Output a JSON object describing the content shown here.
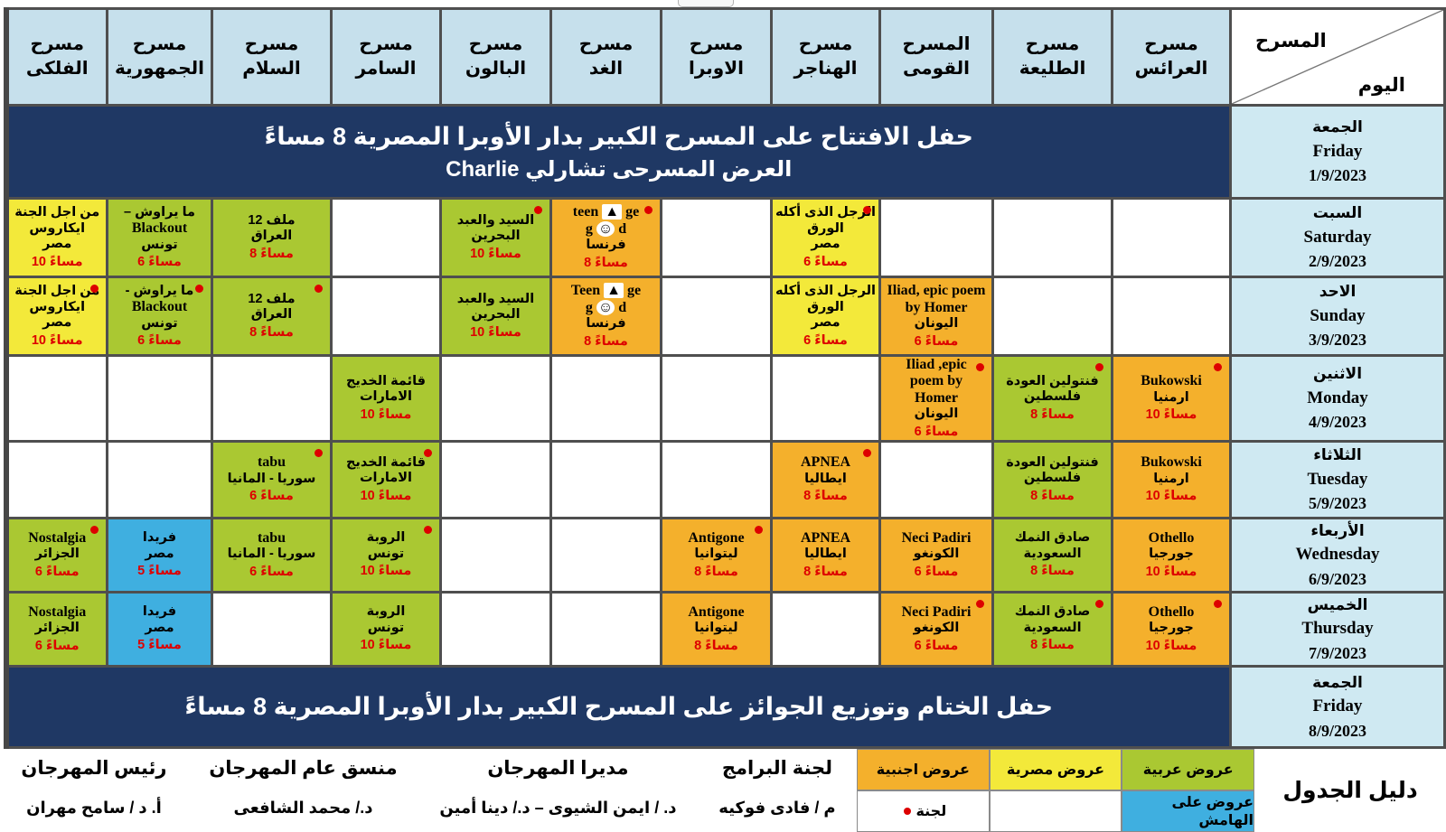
{
  "corner": {
    "top": "المسرح",
    "bottom": "اليوم"
  },
  "theaters": [
    "مسرح\nالعرائس",
    "مسرح\nالطليعة",
    "المسرح\nالقومى",
    "مسرح\nالهناجر",
    "مسرح\nالاوبرا",
    "مسرح\nالغد",
    "مسرح\nالبالون",
    "مسرح\nالسامر",
    "مسرح\nالسلام",
    "مسرح\nالجمهورية",
    "مسرح\nالفلكى"
  ],
  "pm": "مساءً",
  "days": [
    {
      "ar": "الجمعة",
      "en": "Friday",
      "date": "1/9/2023"
    },
    {
      "ar": "السبت",
      "en": "Saturday",
      "date": "2/9/2023"
    },
    {
      "ar": "الاحد",
      "en": "Sunday",
      "date": "3/9/2023"
    },
    {
      "ar": "الاثنين",
      "en": "Monday",
      "date": "4/9/2023"
    },
    {
      "ar": "الثلاثاء",
      "en": "Tuesday",
      "date": "5/9/2023"
    },
    {
      "ar": "الأربعاء",
      "en": "Wednesday",
      "date": "6/9/2023"
    },
    {
      "ar": "الخميس",
      "en": "Thursday",
      "date": "7/9/2023"
    },
    {
      "ar": "الجمعة",
      "en": "Friday",
      "date": "8/9/2023"
    }
  ],
  "ceremonies": {
    "opening_line1": "حفل الافتتاح على المسرح الكبير بدار الأوبرا المصرية  8 مساءً",
    "opening_line2": "العرض المسرحى  تشارلي  Charlie",
    "closing": "حفل الختام وتوزيع الجوائز على المسرح الكبير بدار الأوبرا المصرية  8 مساءً"
  },
  "schedule": [
    {
      "day": 1,
      "cells": [
        null,
        null,
        null,
        {
          "c": "yellow",
          "b": true,
          "lines": [
            "الرجل الذى أكله",
            "الورق",
            "مصر"
          ],
          "time": "6"
        },
        null,
        {
          "c": "orange",
          "b": true,
          "lines": [
            "teen ▲ ge",
            "g ☺ d",
            "فرنسا"
          ],
          "time": "8"
        },
        {
          "c": "green",
          "b": true,
          "lines": [
            "السيد والعبد",
            "البحرين"
          ],
          "time": "10"
        },
        null,
        {
          "c": "green",
          "b": false,
          "lines": [
            "ملف 12",
            "العراق"
          ],
          "time": "8"
        },
        {
          "c": "green",
          "b": false,
          "lines": [
            "ما يراوش –",
            "Blackout",
            "تونس"
          ],
          "time": "6"
        },
        {
          "c": "yellow",
          "b": false,
          "lines": [
            "من اجل الجنة",
            "ايكاروس",
            "مصر"
          ],
          "time": "10"
        }
      ]
    },
    {
      "day": 2,
      "cells": [
        null,
        null,
        {
          "c": "orange",
          "b": false,
          "lines": [
            "Iliad, epic poem",
            "by Homer",
            "اليونان"
          ],
          "time": "6"
        },
        {
          "c": "yellow",
          "b": false,
          "lines": [
            "الرجل الذى أكله",
            "الورق",
            "مصر"
          ],
          "time": "6"
        },
        null,
        {
          "c": "orange",
          "b": false,
          "lines": [
            "Teen ▲ ge",
            "g ☺ d",
            "فرنسا"
          ],
          "time": "8"
        },
        {
          "c": "green",
          "b": false,
          "lines": [
            "السيد والعبد",
            "البحرين"
          ],
          "time": "10"
        },
        null,
        {
          "c": "green",
          "b": true,
          "lines": [
            "ملف 12",
            "العراق"
          ],
          "time": "8"
        },
        {
          "c": "green",
          "b": true,
          "lines": [
            "ما يراوش -",
            "Blackout",
            "تونس"
          ],
          "time": "6"
        },
        {
          "c": "yellow",
          "b": true,
          "lines": [
            "من اجل الجنة",
            "ايكاروس",
            "مصر"
          ],
          "time": "10"
        }
      ]
    },
    {
      "day": 3,
      "cells": [
        {
          "c": "orange",
          "b": true,
          "lines": [
            "Bukowski",
            "ارمنيا"
          ],
          "time": "10"
        },
        {
          "c": "green",
          "b": true,
          "lines": [
            "فنتولين العودة",
            "فلسطين"
          ],
          "time": "8"
        },
        {
          "c": "orange",
          "b": true,
          "lines": [
            "Iliad ,epic",
            "poem by",
            "Homer",
            "اليونان"
          ],
          "time": "6"
        },
        null,
        null,
        null,
        null,
        {
          "c": "green",
          "b": false,
          "lines": [
            "قائمة الخديج",
            "الامارات"
          ],
          "time": "10"
        },
        null,
        null,
        null
      ]
    },
    {
      "day": 4,
      "cells": [
        {
          "c": "orange",
          "b": false,
          "lines": [
            "Bukowski",
            "ارمنيا"
          ],
          "time": "10"
        },
        {
          "c": "green",
          "b": false,
          "lines": [
            "فنتولين العودة",
            "فلسطين"
          ],
          "time": "8"
        },
        null,
        {
          "c": "orange",
          "b": true,
          "lines": [
            "APNEA",
            "ايطاليا"
          ],
          "time": "8"
        },
        null,
        null,
        null,
        {
          "c": "green",
          "b": true,
          "lines": [
            "قائمة الخديج",
            "الامارات"
          ],
          "time": "10"
        },
        {
          "c": "green",
          "b": true,
          "lines": [
            "tabu",
            "سوريا - المانيا"
          ],
          "time": "6"
        },
        null,
        null
      ]
    },
    {
      "day": 5,
      "cells": [
        {
          "c": "orange",
          "b": false,
          "lines": [
            "Othello",
            "جورجيا"
          ],
          "time": "10"
        },
        {
          "c": "green",
          "b": false,
          "lines": [
            "صادق النمك",
            "السعودية"
          ],
          "time": "8"
        },
        {
          "c": "orange",
          "b": false,
          "lines": [
            "Neci Padiri",
            "الكونغو"
          ],
          "time": "6"
        },
        {
          "c": "orange",
          "b": false,
          "lines": [
            "APNEA",
            "ايطاليا"
          ],
          "time": "8"
        },
        {
          "c": "orange",
          "b": true,
          "lines": [
            "Antigone",
            "ليتوانيا"
          ],
          "time": "8"
        },
        null,
        null,
        {
          "c": "green",
          "b": true,
          "lines": [
            "الروبة",
            "تونس"
          ],
          "time": "10"
        },
        {
          "c": "green",
          "b": false,
          "lines": [
            "tabu",
            "سوريا - المانيا"
          ],
          "time": "6"
        },
        {
          "c": "blue",
          "b": false,
          "lines": [
            "فريدا",
            "مصر"
          ],
          "time": "5"
        },
        {
          "c": "green",
          "b": true,
          "lines": [
            "Nostalgia",
            "الجزائر"
          ],
          "time": "6"
        }
      ]
    },
    {
      "day": 6,
      "cells": [
        {
          "c": "orange",
          "b": true,
          "lines": [
            "Othello",
            "جورجيا"
          ],
          "time": "10"
        },
        {
          "c": "green",
          "b": true,
          "lines": [
            "صادق النمك",
            "السعودية"
          ],
          "time": "8"
        },
        {
          "c": "orange",
          "b": true,
          "lines": [
            "Neci Padiri",
            "الكونغو"
          ],
          "time": "6"
        },
        null,
        {
          "c": "orange",
          "b": false,
          "lines": [
            "Antigone",
            "ليتوانيا"
          ],
          "time": "8"
        },
        null,
        null,
        {
          "c": "green",
          "b": false,
          "lines": [
            "الروبة",
            "تونس"
          ],
          "time": "10"
        },
        null,
        {
          "c": "blue",
          "b": false,
          "lines": [
            "فريدا",
            "مصر"
          ],
          "time": "5"
        },
        {
          "c": "green",
          "b": false,
          "lines": [
            "Nostalgia",
            "الجزائر"
          ],
          "time": "6"
        }
      ]
    }
  ],
  "legend": {
    "title": "دليل الجدول",
    "row1": [
      {
        "label": "عروض عربية",
        "color": "#aac832"
      },
      {
        "label": "عروض مصرية",
        "color": "#f3e93a"
      },
      {
        "label": "عروض اجنبية",
        "color": "#f4b02c"
      }
    ],
    "row2": [
      {
        "label": "عروض على الهامش",
        "color": "#3fafe0",
        "bullet": false
      },
      {
        "label": "",
        "color": "#ffffff",
        "bullet": false
      },
      {
        "label": "لجنة",
        "color": "#ffffff",
        "bullet": true
      }
    ]
  },
  "officials": [
    {
      "title": "لجنة البرامج",
      "name": "م / فادى فوكيه"
    },
    {
      "title": "مديرا  المهرجان",
      "name": "د. /  ايمن الشيوى – د./ دينا أمين"
    },
    {
      "title": "منسق عام المهرجان",
      "name": "د./ محمد الشافعى"
    },
    {
      "title": "رئيس المهرجان",
      "name": "أ. د / سامح مهران"
    }
  ],
  "colors": {
    "navy": "#1f3864",
    "header_bg": "#c6e0ec",
    "day_bg": "#cfe9f2",
    "green": "#aac832",
    "yellow": "#f3e93a",
    "orange": "#f4b02c",
    "blue": "#3fafe0",
    "time_red": "#dd0000",
    "grid": "#4f4f4f"
  }
}
